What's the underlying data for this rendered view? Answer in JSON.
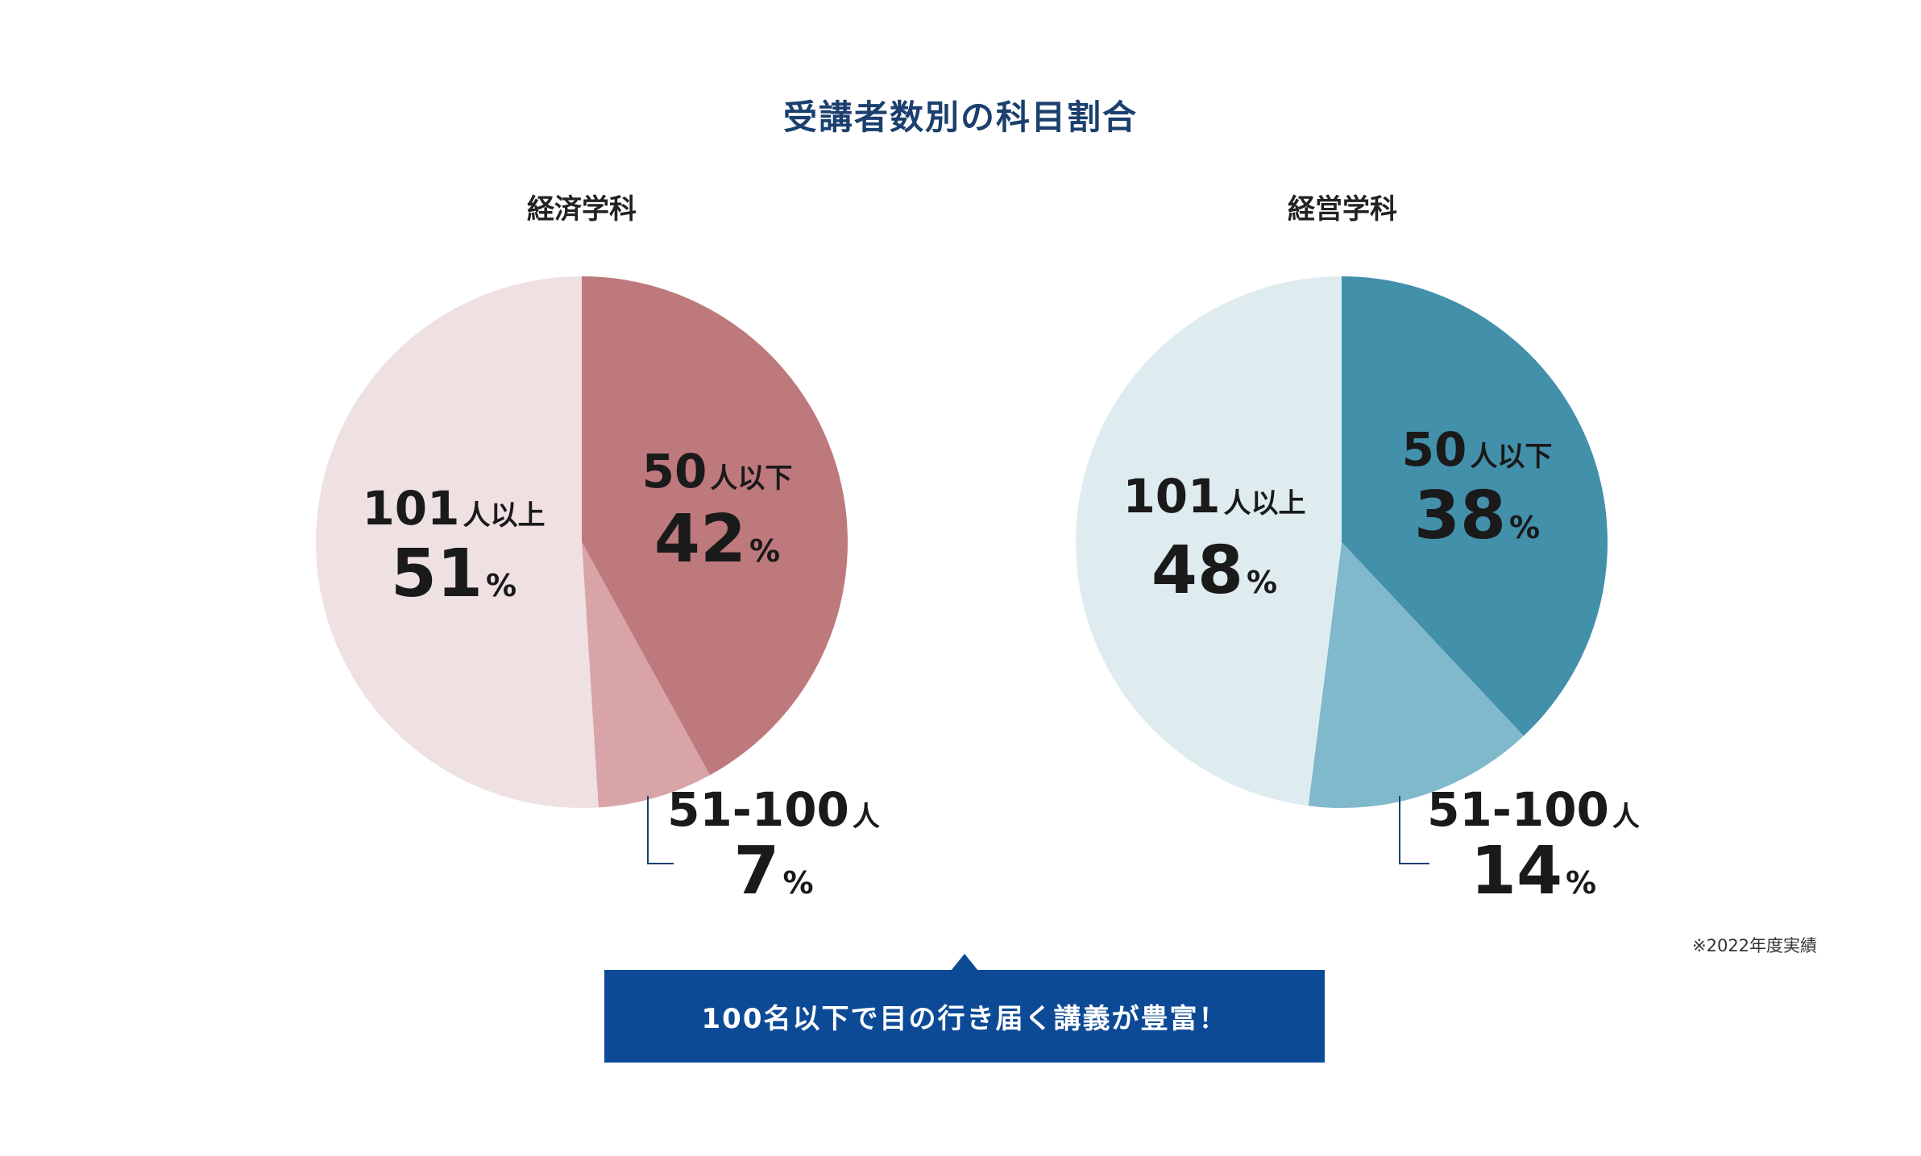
{
  "title": "受講者数別の科目割合",
  "note": "※2022年度実績",
  "callout": "100名以下で目の行き届く講義が豊富！",
  "chart_data": [
    {
      "type": "pie",
      "title": "経済学科",
      "slices": [
        {
          "label": "50人以下",
          "count": "50",
          "unit": "人以下",
          "value": 42,
          "color": "#be797d"
        },
        {
          "label": "51-100人",
          "count": "51-100",
          "unit": "人",
          "value": 7,
          "color": "#d8a4a8"
        },
        {
          "label": "101人以上",
          "count": "101",
          "unit": "人以上",
          "value": 51,
          "color": "#efe0e2"
        }
      ],
      "percent_symbol": "%"
    },
    {
      "type": "pie",
      "title": "経営学科",
      "slices": [
        {
          "label": "50人以下",
          "count": "50",
          "unit": "人以下",
          "value": 38,
          "color": "#4390ab"
        },
        {
          "label": "51-100人",
          "count": "51-100",
          "unit": "人",
          "value": 14,
          "color": "#80b8cc"
        },
        {
          "label": "101人以上",
          "count": "101",
          "unit": "人以上",
          "value": 48,
          "color": "#deecf0"
        }
      ],
      "percent_symbol": "%"
    }
  ]
}
